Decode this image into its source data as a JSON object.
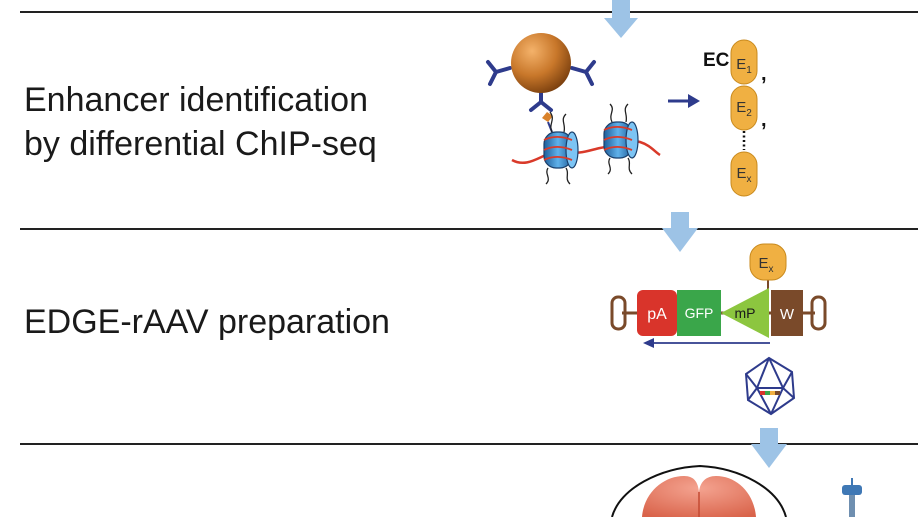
{
  "steps": [
    {
      "label_lines": [
        "Enhancer identification",
        "by differential ChIP-seq"
      ]
    },
    {
      "label_lines": [
        "EDGE-rAAV preparation"
      ]
    }
  ],
  "enhancer_panel": {
    "prefix": "EC",
    "items": [
      {
        "base": "E",
        "sub": "1",
        "suffix": ","
      },
      {
        "base": "E",
        "sub": "2",
        "suffix": ","
      },
      {
        "base": "E",
        "sub": "x",
        "suffix": ""
      }
    ]
  },
  "construct": {
    "enhancer": {
      "base": "E",
      "sub": "x"
    },
    "elements": [
      "pA",
      "GFP",
      "mP",
      "W"
    ]
  },
  "colors": {
    "flow_arrow": "#9dc3e6",
    "enhancer": "#f0b042",
    "bead": "#c8772a",
    "antibody": "#2e3b8c",
    "nucleosome": "#3a8fd0",
    "dna": "#d93a2a",
    "pA": "#d9342b",
    "GFP": "#3aa64a",
    "mP": "#8cc63f",
    "W": "#7a4a2a",
    "itr": "#7a4a2a",
    "capsid": "#2e3b8c",
    "brain": "#e9806a"
  }
}
